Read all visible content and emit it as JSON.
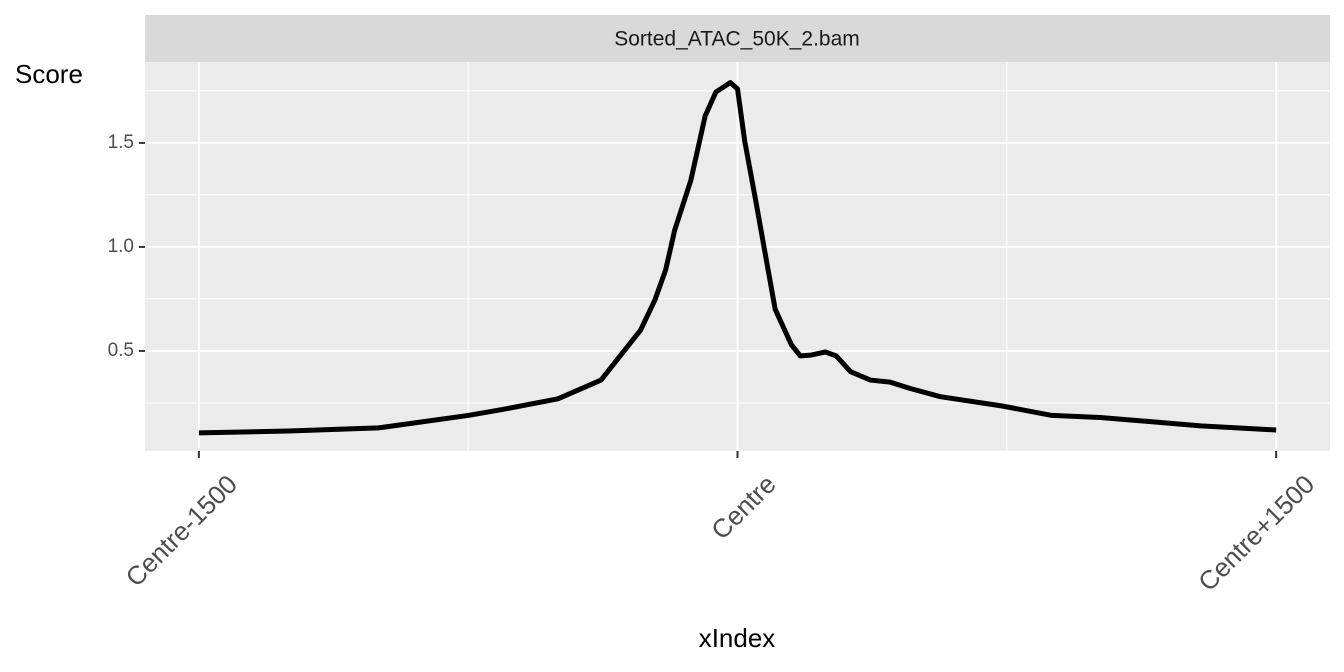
{
  "chart_data": {
    "type": "line",
    "strip_title": "Sorted_ATAC_50K_2.bam",
    "y_label": "Score",
    "x_label": "xIndex",
    "x": [
      -1500,
      -1250,
      -1000,
      -750,
      -650,
      -500,
      -380,
      -325,
      -270,
      -230,
      -200,
      -175,
      -130,
      -90,
      -60,
      -20,
      0,
      20,
      50,
      80,
      105,
      150,
      175,
      205,
      245,
      275,
      315,
      370,
      425,
      480,
      565,
      735,
      875,
      1010,
      1150,
      1290,
      1500
    ],
    "series": [
      {
        "name": "Sorted_ATAC_50K_2.bam",
        "color": "#000000",
        "values": [
          0.106,
          0.115,
          0.13,
          0.19,
          0.22,
          0.27,
          0.36,
          0.48,
          0.6,
          0.745,
          0.89,
          1.08,
          1.32,
          1.63,
          1.745,
          1.79,
          1.76,
          1.51,
          1.23,
          0.94,
          0.7,
          0.53,
          0.476,
          0.48,
          0.495,
          0.476,
          0.4,
          0.36,
          0.35,
          0.32,
          0.28,
          0.236,
          0.19,
          0.18,
          0.16,
          0.14,
          0.12
        ]
      }
    ],
    "xlim": [
      -1650,
      1650
    ],
    "xticks": [
      {
        "value": -1500,
        "label": "Centre-1500"
      },
      {
        "value": 0,
        "label": "Centre"
      },
      {
        "value": 1500,
        "label": "Centre+1500"
      }
    ],
    "xminor": [
      -750,
      750
    ],
    "ylim": [
      0.019,
      1.889
    ],
    "yticks": [
      0.5,
      {
        "value": 1,
        "label": "1.0"
      },
      1.5
    ],
    "yminor": [
      0.25,
      0.75,
      1.25,
      1.75
    ],
    "grid": true
  }
}
